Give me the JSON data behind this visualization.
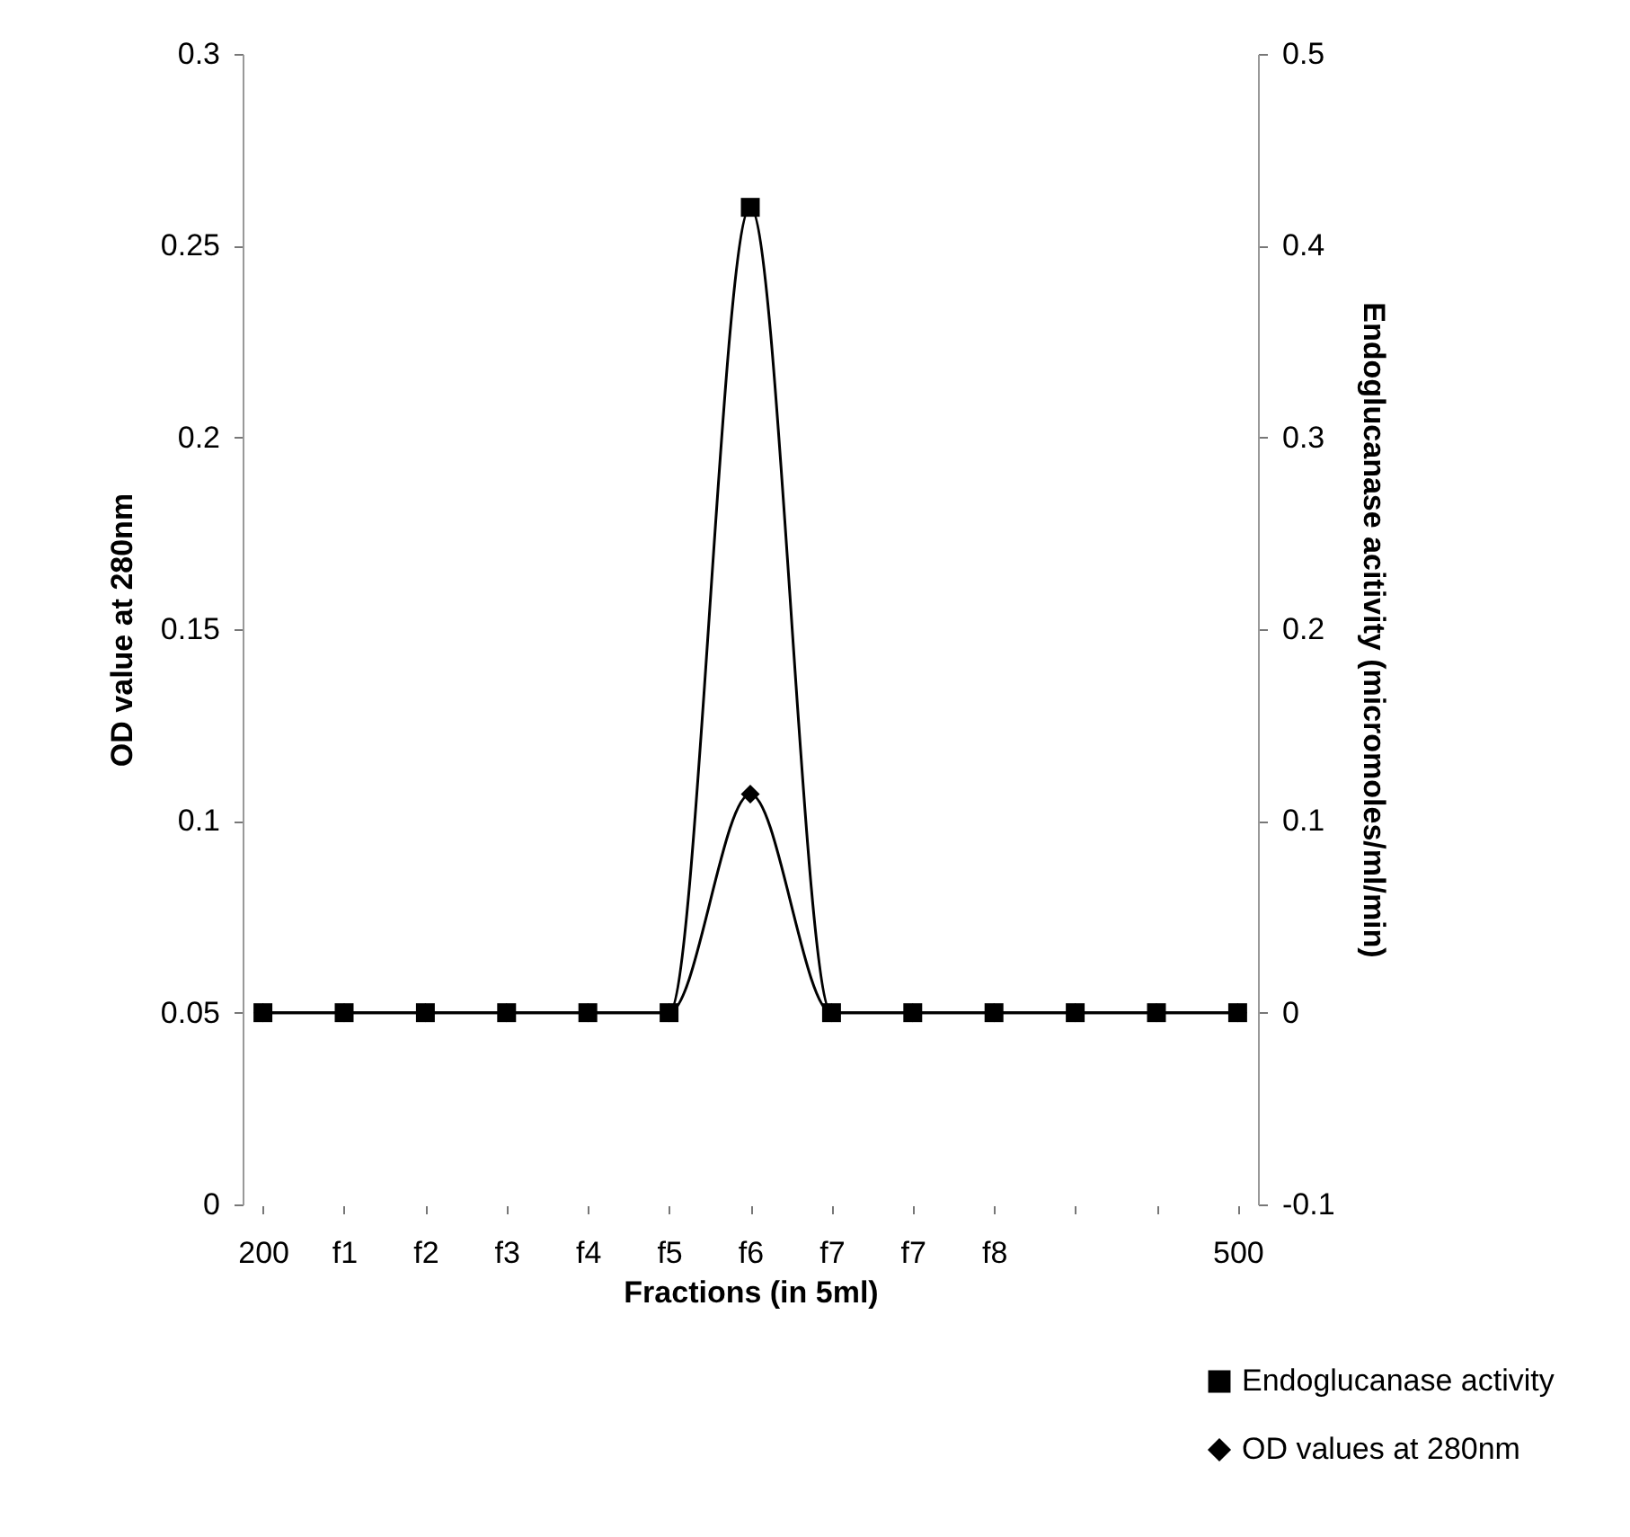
{
  "chart_data": {
    "type": "line",
    "xlabel": "Fractions (in 5ml)",
    "ylabel": "OD value at 280nm",
    "y2label": "Endoglucanase acitivity (micromoles/ml/min)",
    "categories": [
      "200",
      "f1",
      "f2",
      "f3",
      "f4",
      "f5",
      "f6",
      "f7",
      "f7",
      "f8",
      null,
      null,
      "500"
    ],
    "series": [
      {
        "name": "Endoglucanase activity",
        "color": "#000000",
        "axis": "y2",
        "marker": "square",
        "values": [
          0,
          0,
          0,
          0,
          0,
          0,
          0.42,
          0,
          0,
          0,
          0,
          0,
          0
        ]
      },
      {
        "name": "OD values at 280nm",
        "color": "#000000",
        "marker": "diamond",
        "values": [
          0.05,
          0.05,
          0.05,
          0.05,
          0.05,
          0.05,
          0.107,
          0.05,
          0.05,
          0.05,
          0.05,
          0.05,
          0.05
        ]
      }
    ],
    "ylim": [
      0,
      0.3
    ],
    "yticks": [
      0,
      0.05,
      0.1,
      0.15,
      0.2,
      0.25,
      0.3
    ],
    "y2lim": [
      -0.1,
      0.5
    ],
    "y2ticks": [
      -0.1,
      0,
      0.1,
      0.2,
      0.3,
      0.4,
      0.5
    ],
    "grid": false,
    "legend": "bottom right",
    "line_style": "solid"
  }
}
